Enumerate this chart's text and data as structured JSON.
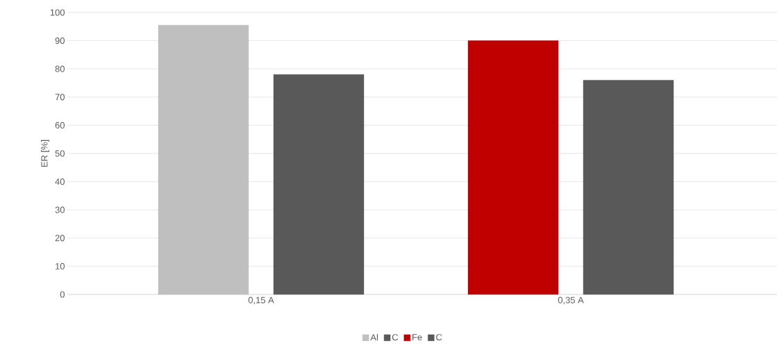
{
  "chart_data": {
    "type": "bar",
    "ylabel": "ER [%]",
    "categories": [
      "0,15 A",
      "0,35 A"
    ],
    "series": [
      {
        "name": "Al",
        "color": "#bfbfbf",
        "values": [
          95.5,
          null
        ]
      },
      {
        "name": "C",
        "color": "#595959",
        "values": [
          78,
          null
        ]
      },
      {
        "name": "Fe",
        "color": "#c00000",
        "values": [
          null,
          90
        ]
      },
      {
        "name": "C",
        "color": "#595959",
        "values": [
          null,
          76
        ]
      }
    ],
    "ylim": [
      0,
      100
    ],
    "yticks": [
      0,
      10,
      20,
      30,
      40,
      50,
      60,
      70,
      80,
      90,
      100
    ],
    "grid": "y",
    "legend": "bottom"
  }
}
